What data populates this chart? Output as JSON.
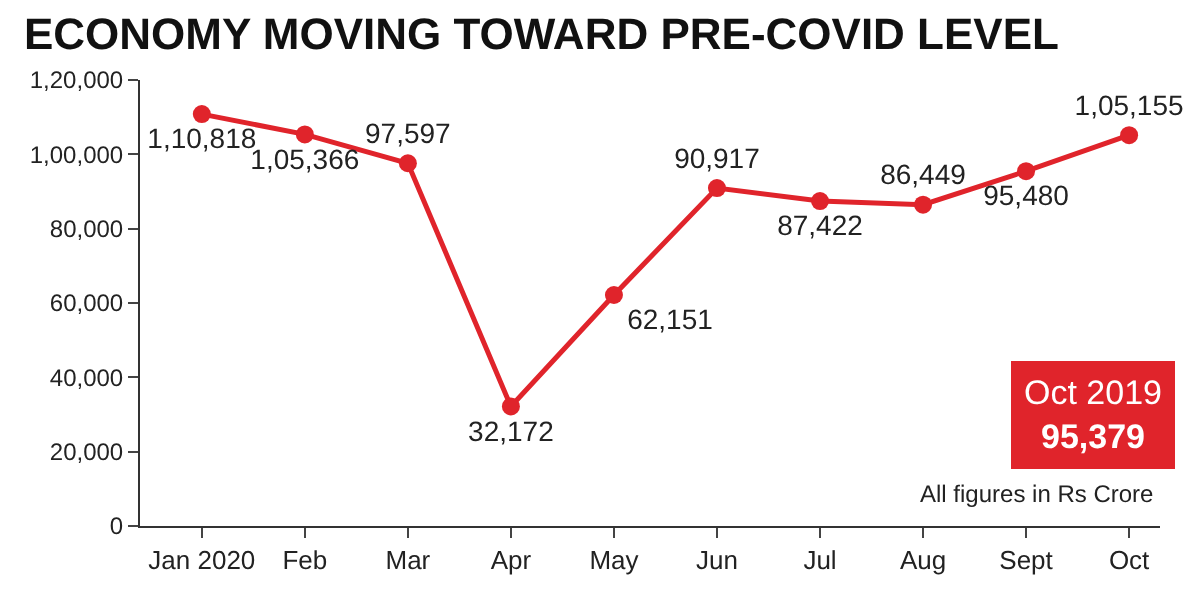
{
  "chart_data": {
    "type": "line",
    "title": "ECONOMY MOVING TOWARD PRE-COVID LEVEL",
    "categories": [
      "Jan 2020",
      "Feb",
      "Mar",
      "Apr",
      "May",
      "Jun",
      "Jul",
      "Aug",
      "Sept",
      "Oct"
    ],
    "series": [
      {
        "color": "#e0242b",
        "values": [
          110818,
          105366,
          97597,
          32172,
          62151,
          90917,
          87422,
          86449,
          95480,
          105155
        ],
        "value_labels": [
          "1,10,818",
          "1,05,366",
          "97,597",
          "32,172",
          "62,151",
          "90,917",
          "87,422",
          "86,449",
          "95,480",
          "1,05,155"
        ]
      }
    ],
    "ylim": [
      0,
      120000
    ],
    "yticks": [
      {
        "value": 0,
        "label": "0"
      },
      {
        "value": 20000,
        "label": "20,000"
      },
      {
        "value": 40000,
        "label": "40,000"
      },
      {
        "value": 60000,
        "label": "60,000"
      },
      {
        "value": 80000,
        "label": "80,000"
      },
      {
        "value": 100000,
        "label": "1,00,000"
      },
      {
        "value": 120000,
        "label": "1,20,000"
      }
    ],
    "annotations": [
      "All figures in Rs Crore",
      "Oct 2019",
      "95,379"
    ],
    "marker": "circle",
    "line_style": "solid",
    "legend": false
  }
}
